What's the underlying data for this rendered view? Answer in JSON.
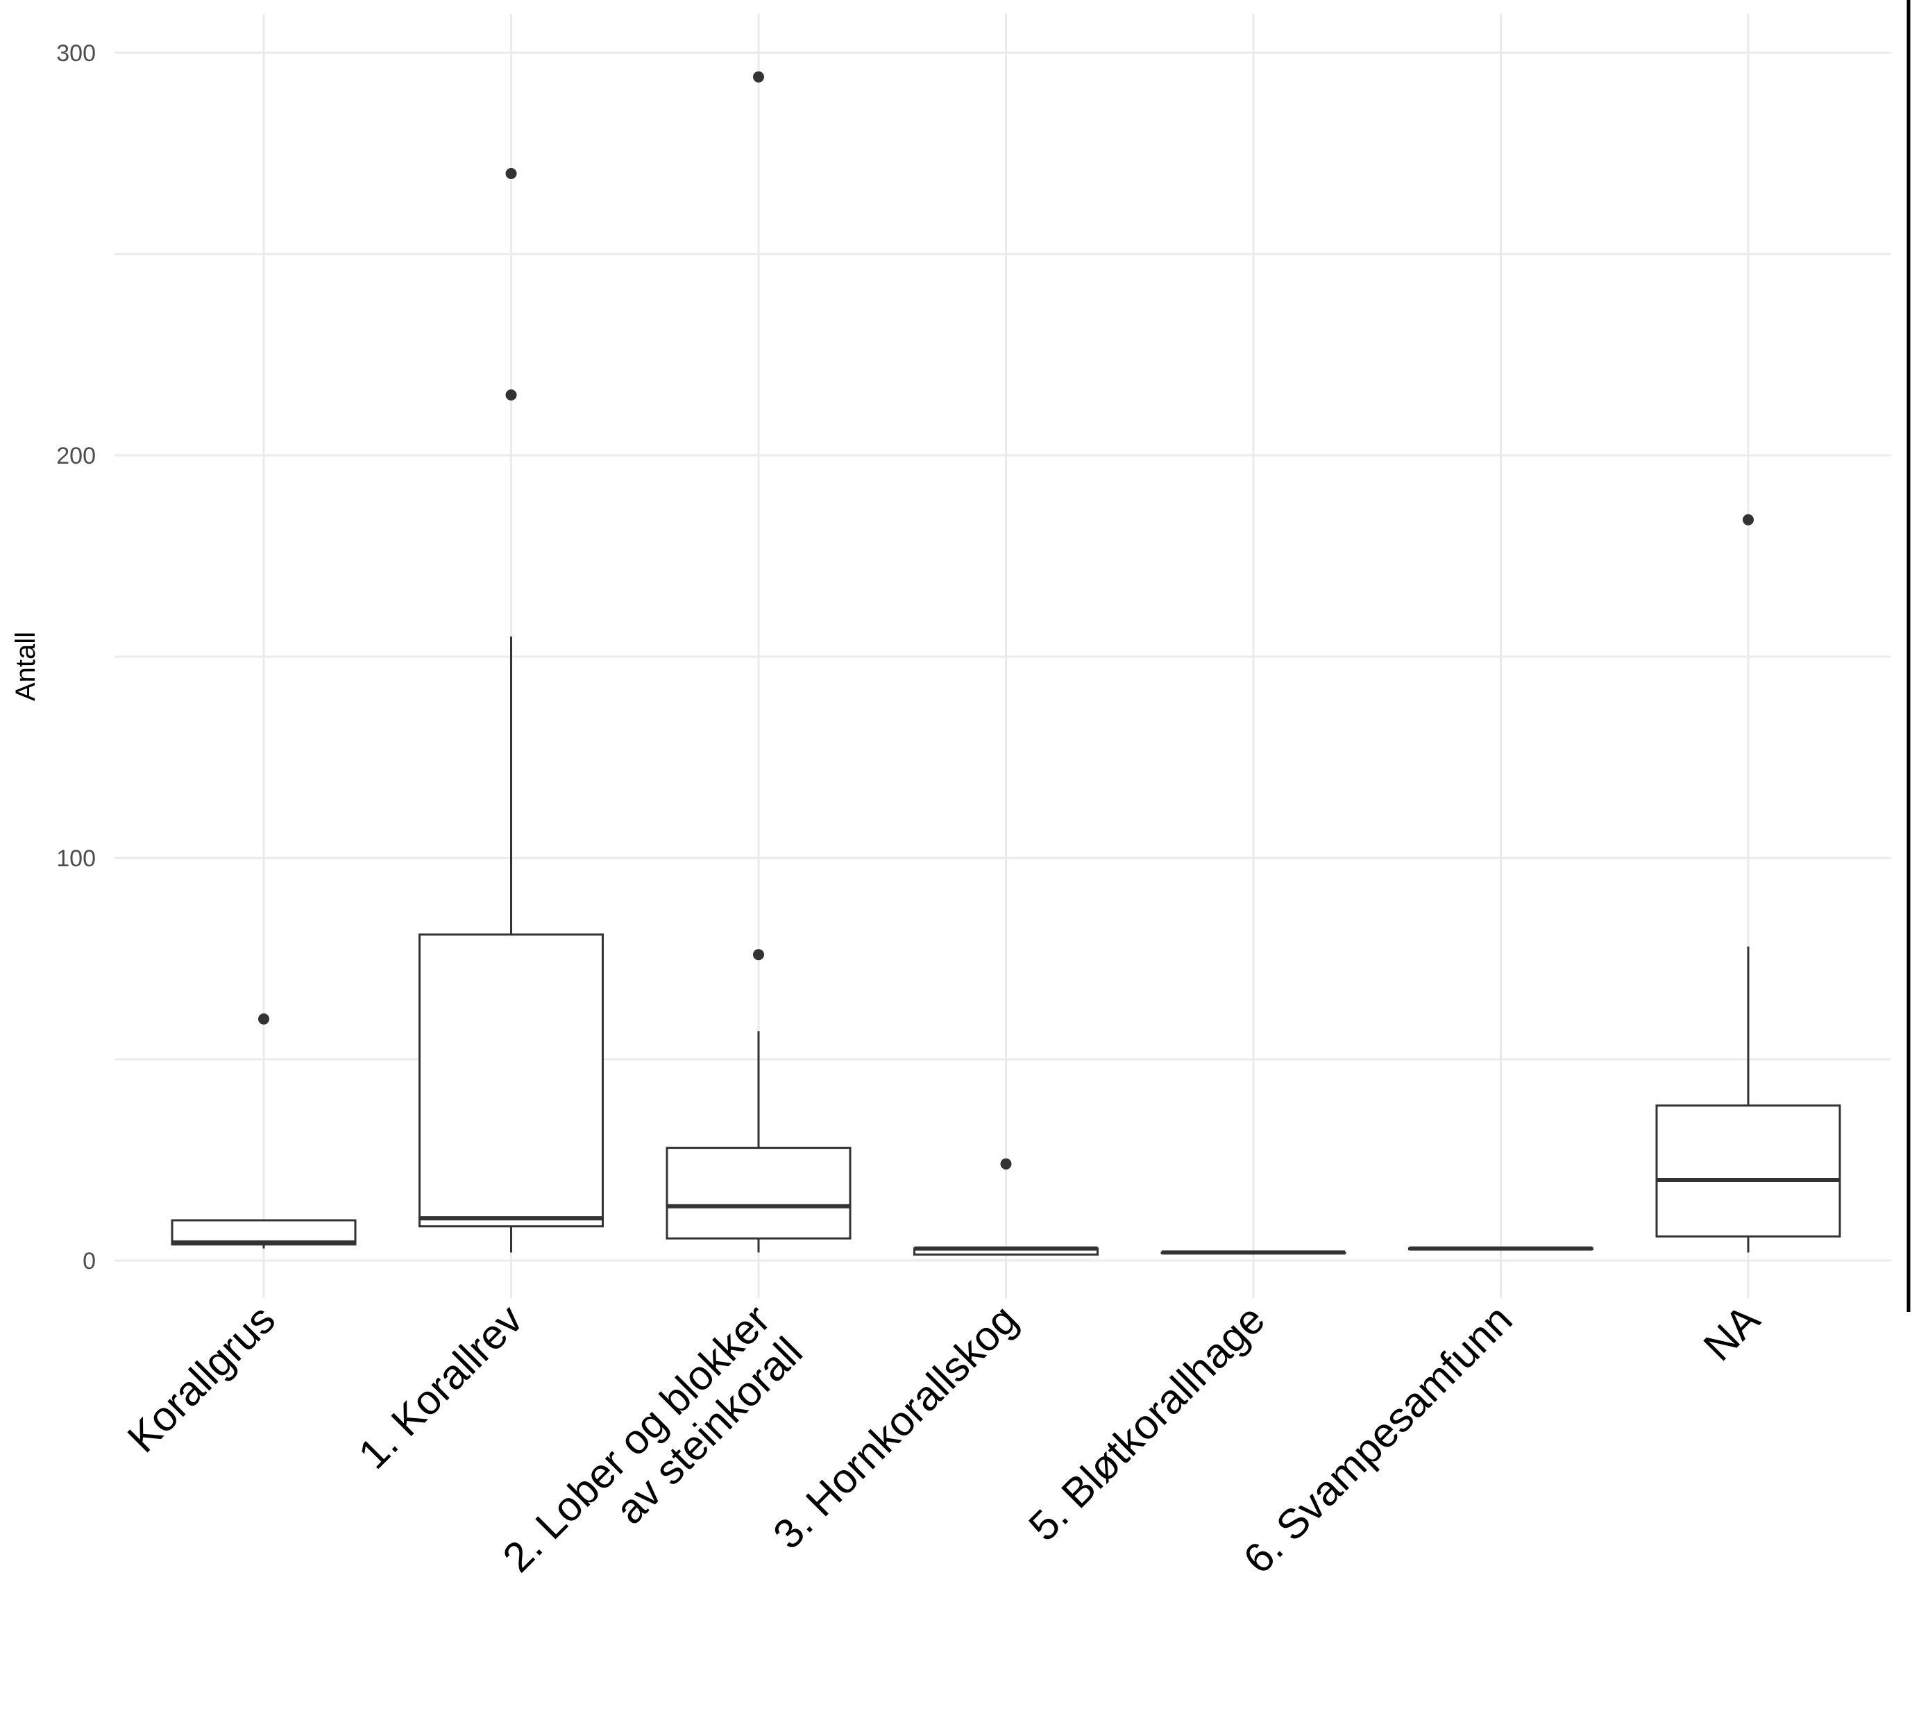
{
  "chart_data": {
    "type": "boxplot",
    "ylabel": "Antall",
    "ylim": [
      -10,
      300
    ],
    "y_ticks": [
      0,
      100,
      200,
      300
    ],
    "grid": true,
    "categories": [
      "Korallgrus",
      "1. Korallrev",
      "2. Lober og blokker av steinkorall",
      "3. Hornkorallskog",
      "5. Bløtkorallhage",
      "6. Svampesamfunn",
      "NA"
    ],
    "category_label_lines": [
      [
        "Korallgrus"
      ],
      [
        "1. Korallrev"
      ],
      [
        "2. Lober og blokker",
        "av steinkorall"
      ],
      [
        "3. Hornkorallskog"
      ],
      [
        "5. Bløtkorallhage"
      ],
      [
        "6. Svampesamfunn"
      ],
      [
        "NA"
      ]
    ],
    "boxes": [
      {
        "category": "Korallgrus",
        "min": 3,
        "q1": 4,
        "median": 4.5,
        "q3": 10,
        "max": 10,
        "outliers": [
          60
        ]
      },
      {
        "category": "1. Korallrev",
        "min": 2,
        "q1": 8.5,
        "median": 10.5,
        "q3": 81,
        "max": 155,
        "outliers": [
          215,
          270
        ]
      },
      {
        "category": "2. Lober og blokker av steinkorall",
        "min": 2,
        "q1": 5.5,
        "median": 13.5,
        "q3": 28,
        "max": 57,
        "outliers": [
          76,
          294
        ]
      },
      {
        "category": "3. Hornkorallskog",
        "min": 1.5,
        "q1": 1.5,
        "median": 3,
        "q3": 3,
        "max": 3,
        "outliers": [
          24
        ]
      },
      {
        "category": "5. Bløtkorallhage",
        "min": 2,
        "q1": 2,
        "median": 2,
        "q3": 2,
        "max": 2,
        "outliers": []
      },
      {
        "category": "6. Svampesamfunn",
        "min": 3,
        "q1": 3,
        "median": 3,
        "q3": 3,
        "max": 3,
        "outliers": []
      },
      {
        "category": "NA",
        "min": 2,
        "q1": 6,
        "median": 20,
        "q3": 38.5,
        "max": 78,
        "outliers": [
          184
        ]
      }
    ],
    "colors": {
      "box_stroke": "#333333",
      "box_fill": "#ffffff",
      "grid": "#ebebeb",
      "tick_text": "#4d4d4d"
    }
  }
}
